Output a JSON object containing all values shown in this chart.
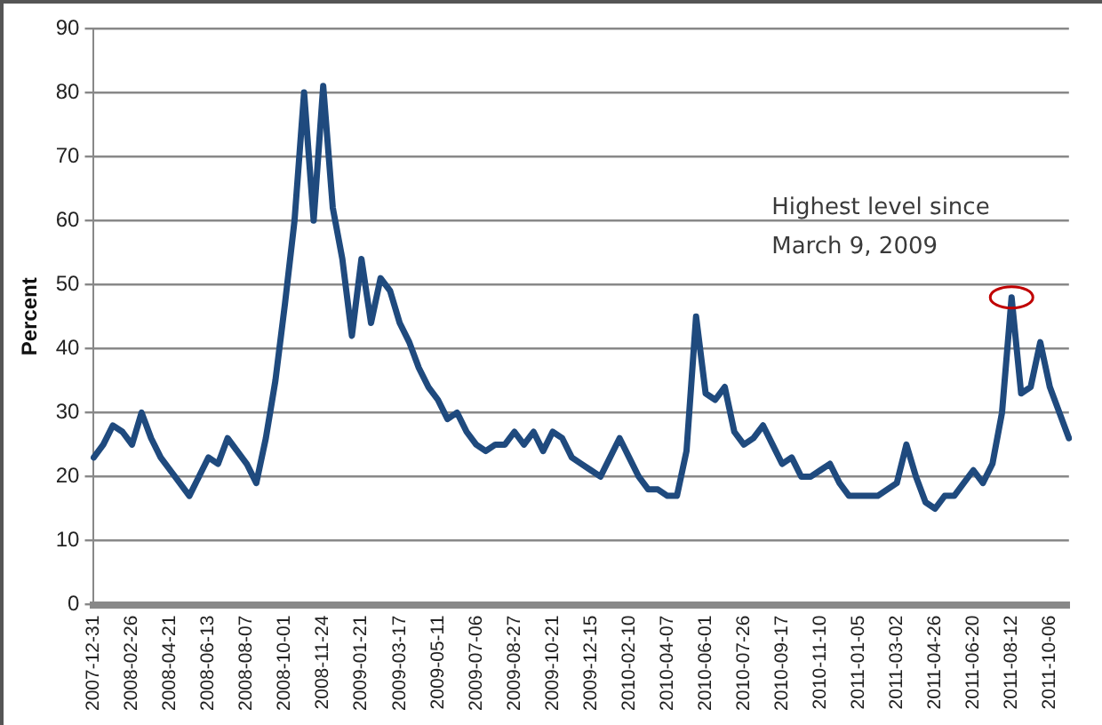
{
  "chart_data": {
    "type": "line",
    "ylabel": "Percent",
    "categories": [
      "2007-12-31",
      null,
      null,
      null,
      "2008-02-26",
      null,
      null,
      null,
      "2008-04-21",
      null,
      null,
      null,
      "2008-06-13",
      null,
      null,
      null,
      "2008-08-07",
      null,
      null,
      null,
      "2008-10-01",
      null,
      null,
      null,
      "2008-11-24",
      null,
      null,
      null,
      "2009-01-21",
      null,
      null,
      null,
      "2009-03-17",
      null,
      null,
      null,
      "2009-05-11",
      null,
      null,
      null,
      "2009-07-06",
      null,
      null,
      null,
      "2009-08-27",
      null,
      null,
      null,
      "2009-10-21",
      null,
      null,
      null,
      "2009-12-15",
      null,
      null,
      null,
      "2010-02-10",
      null,
      null,
      null,
      "2010-04-07",
      null,
      null,
      null,
      "2010-06-01",
      null,
      null,
      null,
      "2010-07-26",
      null,
      null,
      null,
      "2010-09-17",
      null,
      null,
      null,
      "2010-11-10",
      null,
      null,
      null,
      "2011-01-05",
      null,
      null,
      null,
      "2011-03-02",
      null,
      null,
      null,
      "2011-04-26",
      null,
      null,
      null,
      "2011-06-20",
      null,
      null,
      null,
      "2011-08-12",
      null,
      null,
      null,
      "2011-10-06",
      null,
      null
    ],
    "series": [
      {
        "color": "#1f4a7e",
        "values": [
          23,
          25,
          28,
          27,
          25,
          30,
          26,
          23,
          21,
          19,
          17,
          20,
          23,
          22,
          26,
          24,
          22,
          19,
          26,
          35,
          47,
          60,
          80,
          60,
          81,
          62,
          54,
          42,
          54,
          44,
          51,
          49,
          44,
          41,
          37,
          34,
          32,
          29,
          30,
          27,
          25,
          24,
          25,
          25,
          27,
          25,
          27,
          24,
          27,
          26,
          23,
          22,
          21,
          20,
          23,
          26,
          23,
          20,
          18,
          18,
          17,
          17,
          24,
          45,
          33,
          32,
          34,
          27,
          25,
          26,
          28,
          25,
          22,
          23,
          20,
          20,
          21,
          22,
          19,
          17,
          17,
          17,
          17,
          18,
          19,
          25,
          20,
          16,
          15,
          17,
          17,
          19,
          21,
          19,
          22,
          30,
          48,
          33,
          34,
          41,
          34,
          30,
          26
        ]
      }
    ],
    "ylim": [
      0,
      90
    ],
    "yticks": [
      0,
      10,
      20,
      30,
      40,
      50,
      60,
      70,
      80,
      90
    ],
    "grid": "y",
    "marker": "none",
    "line_style": "solid",
    "annotations": [
      {
        "text": "Highest level since March 9, 2009",
        "x": "2011-08-12",
        "y": 48
      }
    ]
  }
}
